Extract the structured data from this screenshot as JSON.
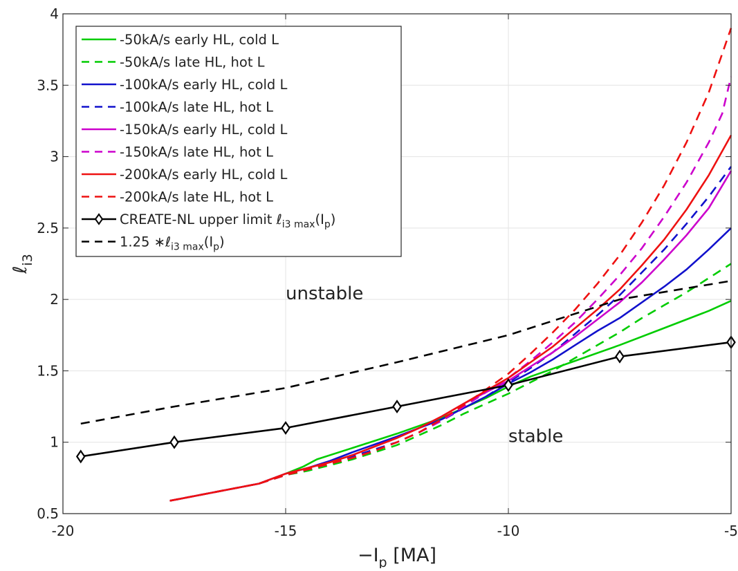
{
  "chart_data": {
    "type": "line",
    "title": "",
    "xlabel": {
      "main": "−I",
      "sub": "p",
      "tail": " [MA]"
    },
    "ylabel": {
      "main": "ℓ",
      "sub": "i3"
    },
    "xlim": [
      -20,
      -5
    ],
    "ylim": [
      0.5,
      4
    ],
    "grid": true,
    "legend_position": "top-left",
    "xticks": [
      {
        "value": -20,
        "label": "-20"
      },
      {
        "value": -15,
        "label": "-15"
      },
      {
        "value": -10,
        "label": "-10"
      },
      {
        "value": -5,
        "label": "-5"
      }
    ],
    "yticks": [
      {
        "value": 0.5,
        "label": "0.5"
      },
      {
        "value": 1,
        "label": "1"
      },
      {
        "value": 1.5,
        "label": "1.5"
      },
      {
        "value": 2,
        "label": "2"
      },
      {
        "value": 2.5,
        "label": "2.5"
      },
      {
        "value": 3,
        "label": "3"
      },
      {
        "value": 3.5,
        "label": "3.5"
      },
      {
        "value": 4,
        "label": "4"
      }
    ],
    "annotations": [
      {
        "text": "unstable",
        "x": -15,
        "y": 2.0
      },
      {
        "text": "stable",
        "x": -10,
        "y": 1.0
      }
    ],
    "series": [
      {
        "key": "s50e",
        "color": "#00cc00",
        "dash": false,
        "legend": [
          {
            "t": "-50kA/s early HL, cold L"
          }
        ],
        "x": [
          -17.6,
          -16.6,
          -15.6,
          -15.0,
          -14.6,
          -14.3,
          -13.5,
          -12.5,
          -11.5,
          -10.5,
          -10.0,
          -9.5,
          -8.5,
          -7.5,
          -6.5,
          -5.5,
          -5.0
        ],
        "y": [
          0.59,
          0.65,
          0.71,
          0.78,
          0.83,
          0.88,
          0.96,
          1.06,
          1.17,
          1.31,
          1.39,
          1.46,
          1.57,
          1.68,
          1.8,
          1.92,
          1.99
        ]
      },
      {
        "key": "s50l",
        "color": "#00cc00",
        "dash": true,
        "legend": [
          {
            "t": "-50kA/s late HL, hot L"
          }
        ],
        "x": [
          -17.6,
          -16.6,
          -15.6,
          -15.0,
          -14.5,
          -14.0,
          -13.5,
          -13.0,
          -12.5,
          -12.0,
          -11.5,
          -11.0,
          -10.5,
          -10.0,
          -9.5,
          -9.0,
          -8.5,
          -8.0,
          -7.5,
          -7.0,
          -6.5,
          -6.0,
          -5.5,
          -5.0
        ],
        "y": [
          0.59,
          0.65,
          0.71,
          0.77,
          0.8,
          0.84,
          0.88,
          0.93,
          0.98,
          1.05,
          1.12,
          1.2,
          1.27,
          1.34,
          1.42,
          1.5,
          1.59,
          1.68,
          1.77,
          1.87,
          1.96,
          2.05,
          2.15,
          2.25
        ]
      },
      {
        "key": "s100e",
        "color": "#1111cc",
        "dash": false,
        "legend": [
          {
            "t": "-100kA/s early HL, cold L"
          }
        ],
        "x": [
          -17.6,
          -16.6,
          -15.6,
          -15.0,
          -14.5,
          -14.0,
          -13.5,
          -12.5,
          -11.5,
          -10.5,
          -10.0,
          -9.5,
          -9.0,
          -8.5,
          -8.0,
          -7.5,
          -7.0,
          -6.5,
          -6.0,
          -5.5,
          -5.0
        ],
        "y": [
          0.59,
          0.65,
          0.71,
          0.78,
          0.82,
          0.87,
          0.93,
          1.04,
          1.16,
          1.32,
          1.41,
          1.49,
          1.58,
          1.68,
          1.78,
          1.87,
          1.98,
          2.09,
          2.21,
          2.35,
          2.5
        ]
      },
      {
        "key": "s100l",
        "color": "#1111cc",
        "dash": true,
        "legend": [
          {
            "t": "-100kA/s late HL, hot L"
          }
        ],
        "x": [
          -17.6,
          -16.6,
          -15.6,
          -15.0,
          -14.5,
          -14.0,
          -13.5,
          -13.0,
          -12.5,
          -12.0,
          -11.5,
          -11.0,
          -10.5,
          -10.0,
          -9.5,
          -9.0,
          -8.5,
          -8.0,
          -7.5,
          -7.0,
          -6.5,
          -6.0,
          -5.5,
          -5.0
        ],
        "y": [
          0.59,
          0.65,
          0.71,
          0.77,
          0.81,
          0.85,
          0.9,
          0.95,
          1.0,
          1.07,
          1.15,
          1.24,
          1.32,
          1.42,
          1.52,
          1.63,
          1.76,
          1.89,
          2.03,
          2.19,
          2.35,
          2.53,
          2.72,
          2.93
        ]
      },
      {
        "key": "s150e",
        "color": "#cc00cc",
        "dash": false,
        "legend": [
          {
            "t": "-150kA/s early HL, cold L"
          }
        ],
        "x": [
          -17.6,
          -16.6,
          -15.6,
          -15.0,
          -14.5,
          -14.0,
          -13.5,
          -13.0,
          -12.5,
          -12.0,
          -11.5,
          -11.0,
          -10.5,
          -10.0,
          -9.5,
          -9.0,
          -8.5,
          -8.0,
          -7.5,
          -7.0,
          -6.5,
          -6.0,
          -5.5,
          -5.0
        ],
        "y": [
          0.59,
          0.65,
          0.71,
          0.78,
          0.82,
          0.86,
          0.91,
          0.97,
          1.03,
          1.1,
          1.18,
          1.27,
          1.35,
          1.43,
          1.53,
          1.63,
          1.74,
          1.86,
          1.98,
          2.12,
          2.28,
          2.45,
          2.64,
          2.9
        ]
      },
      {
        "key": "s150l",
        "color": "#cc00cc",
        "dash": true,
        "legend": [
          {
            "t": "-150kA/s late HL, hot L"
          }
        ],
        "x": [
          -17.6,
          -16.6,
          -15.6,
          -15.0,
          -14.5,
          -14.0,
          -13.5,
          -13.0,
          -12.5,
          -12.0,
          -11.5,
          -11.0,
          -10.5,
          -10.0,
          -9.5,
          -9.0,
          -8.5,
          -8.0,
          -7.5,
          -7.0,
          -6.5,
          -6.0,
          -5.5,
          -5.2,
          -5.0
        ],
        "y": [
          0.59,
          0.65,
          0.71,
          0.77,
          0.81,
          0.85,
          0.89,
          0.94,
          1.0,
          1.07,
          1.15,
          1.25,
          1.35,
          1.45,
          1.57,
          1.7,
          1.84,
          2.0,
          2.17,
          2.36,
          2.58,
          2.82,
          3.1,
          3.3,
          3.56
        ]
      },
      {
        "key": "s200e",
        "color": "#ee1111",
        "dash": false,
        "legend": [
          {
            "t": "-200kA/s early HL, cold L"
          }
        ],
        "x": [
          -17.6,
          -16.6,
          -15.6,
          -15.0,
          -14.5,
          -14.0,
          -13.5,
          -13.0,
          -12.5,
          -12.0,
          -11.5,
          -11.0,
          -10.5,
          -10.0,
          -9.5,
          -9.0,
          -8.5,
          -8.0,
          -7.5,
          -7.0,
          -6.5,
          -6.0,
          -5.5,
          -5.0
        ],
        "y": [
          0.59,
          0.65,
          0.71,
          0.78,
          0.82,
          0.86,
          0.91,
          0.97,
          1.03,
          1.1,
          1.18,
          1.27,
          1.36,
          1.45,
          1.56,
          1.67,
          1.8,
          1.93,
          2.07,
          2.24,
          2.42,
          2.63,
          2.87,
          3.15
        ]
      },
      {
        "key": "s200l",
        "color": "#ee1111",
        "dash": true,
        "legend": [
          {
            "t": "-200kA/s late HL, hot L"
          }
        ],
        "x": [
          -17.6,
          -16.6,
          -15.6,
          -15.0,
          -14.5,
          -14.0,
          -13.5,
          -13.0,
          -12.5,
          -12.0,
          -11.5,
          -11.0,
          -10.5,
          -10.0,
          -9.5,
          -9.0,
          -8.5,
          -8.0,
          -7.5,
          -7.0,
          -6.5,
          -6.0,
          -5.5,
          -5.0
        ],
        "y": [
          0.59,
          0.65,
          0.71,
          0.77,
          0.81,
          0.85,
          0.89,
          0.94,
          1.0,
          1.07,
          1.16,
          1.26,
          1.37,
          1.48,
          1.62,
          1.77,
          1.93,
          2.11,
          2.31,
          2.54,
          2.8,
          3.1,
          3.45,
          3.9
        ]
      },
      {
        "key": "create",
        "color": "#000000",
        "dash": false,
        "marker": "diamond",
        "legend": [
          {
            "t": "CREATE-NL upper limit "
          },
          {
            "t": "ℓ",
            "i": true
          },
          {
            "t": "i3 max",
            "sub": true
          },
          {
            "t": "(I"
          },
          {
            "t": "p",
            "sub": true
          },
          {
            "t": ")"
          }
        ],
        "x": [
          -19.6,
          -17.5,
          -15.0,
          -12.5,
          -10.0,
          -7.5,
          -5.0
        ],
        "y": [
          0.9,
          1.0,
          1.1,
          1.25,
          1.4,
          1.6,
          1.7
        ]
      },
      {
        "key": "scaled",
        "color": "#000000",
        "dash": true,
        "legend": [
          {
            "t": "1.25 ∗"
          },
          {
            "t": "ℓ",
            "i": true
          },
          {
            "t": "i3 max",
            "sub": true
          },
          {
            "t": "(I"
          },
          {
            "t": "p",
            "sub": true
          },
          {
            "t": ")"
          }
        ],
        "x": [
          -19.6,
          -17.5,
          -15.0,
          -12.5,
          -10.0,
          -7.5,
          -5.0
        ],
        "y": [
          1.13,
          1.25,
          1.38,
          1.56,
          1.75,
          2.0,
          2.13
        ]
      }
    ]
  }
}
